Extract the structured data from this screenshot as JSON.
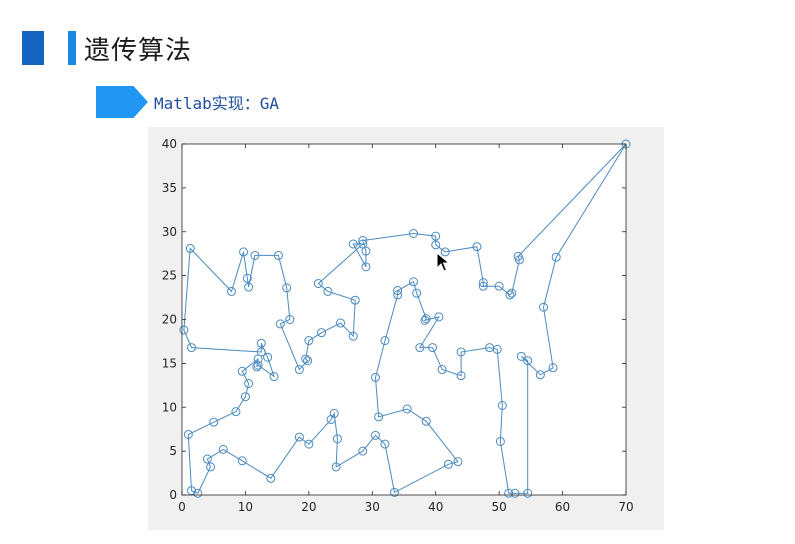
{
  "page": {
    "title": "遗传算法",
    "subtitle": "Matlab实现：GA"
  },
  "colors": {
    "accent_dark": "#1565c0",
    "accent_light": "#1e88e5",
    "arrow": "#2196f3",
    "subtitle": "#1f4fa0",
    "route": "#4a8ac0",
    "figure_bg": "#f0f0f0"
  },
  "icons": {
    "cursor": "mouse-pointer-icon"
  },
  "chart_data": {
    "type": "line",
    "title": "",
    "xlabel": "",
    "ylabel": "",
    "xlim": [
      0,
      70
    ],
    "ylim": [
      0,
      40
    ],
    "xticks": [
      0,
      10,
      20,
      30,
      40,
      50,
      60,
      70
    ],
    "yticks": [
      0,
      5,
      10,
      15,
      20,
      25,
      30,
      35,
      40
    ],
    "xtick_labels": [
      "0",
      "10",
      "20",
      "30",
      "40",
      "50",
      "60",
      "70"
    ],
    "ytick_labels": [
      "0",
      "5",
      "10",
      "15",
      "20",
      "25",
      "30",
      "35",
      "40"
    ],
    "grid": false,
    "marker": "circle",
    "closed": true,
    "points": [
      [
        70,
        40
      ],
      [
        53,
        27.2
      ],
      [
        53.2,
        26.8
      ],
      [
        52,
        23
      ],
      [
        51.7,
        22.8
      ],
      [
        50,
        23.8
      ],
      [
        47.5,
        23.8
      ],
      [
        47.5,
        24.2
      ],
      [
        46.5,
        28.3
      ],
      [
        41.5,
        27.7
      ],
      [
        40,
        28.5
      ],
      [
        40,
        29.5
      ],
      [
        36.5,
        29.8
      ],
      [
        28.5,
        29
      ],
      [
        29,
        27.8
      ],
      [
        29,
        26
      ],
      [
        27,
        28.6
      ],
      [
        28.5,
        28.6
      ],
      [
        21.5,
        24.1
      ],
      [
        23,
        23.2
      ],
      [
        27.3,
        22.2
      ],
      [
        27,
        18.1
      ],
      [
        25,
        19.6
      ],
      [
        22,
        18.5
      ],
      [
        20,
        17.6
      ],
      [
        19.5,
        15.5
      ],
      [
        19.8,
        15.3
      ],
      [
        18.5,
        14.3
      ],
      [
        15.5,
        19.5
      ],
      [
        17,
        20
      ],
      [
        16.5,
        23.6
      ],
      [
        15.2,
        27.3
      ],
      [
        11.5,
        27.3
      ],
      [
        10.5,
        23.7
      ],
      [
        10.3,
        24.7
      ],
      [
        9.7,
        27.7
      ],
      [
        7.8,
        23.2
      ],
      [
        1.3,
        28.1
      ],
      [
        0.3,
        18.8
      ],
      [
        1.5,
        16.8
      ],
      [
        12.5,
        16.3
      ],
      [
        12.5,
        17.3
      ],
      [
        13.5,
        15.7
      ],
      [
        14.5,
        13.5
      ],
      [
        12,
        14.8
      ],
      [
        11.8,
        14.6
      ],
      [
        12,
        15.5
      ],
      [
        9.5,
        14.1
      ],
      [
        10.5,
        12.7
      ],
      [
        10,
        11.2
      ],
      [
        8.5,
        9.5
      ],
      [
        5,
        8.3
      ],
      [
        1,
        6.9
      ],
      [
        1.5,
        0.5
      ],
      [
        2.5,
        0.2
      ],
      [
        4.5,
        3.2
      ],
      [
        4,
        4.1
      ],
      [
        6.5,
        5.2
      ],
      [
        9.5,
        3.9
      ],
      [
        14,
        1.9
      ],
      [
        18.5,
        6.6
      ],
      [
        20,
        5.8
      ],
      [
        23.5,
        8.6
      ],
      [
        24,
        9.3
      ],
      [
        24.5,
        6.4
      ],
      [
        24.3,
        3.2
      ],
      [
        28.5,
        5
      ],
      [
        30.5,
        6.8
      ],
      [
        32,
        5.8
      ],
      [
        33.5,
        0.3
      ],
      [
        42,
        3.5
      ],
      [
        43.5,
        3.8
      ],
      [
        38.5,
        8.4
      ],
      [
        35.5,
        9.8
      ],
      [
        31,
        8.9
      ],
      [
        30.5,
        13.4
      ],
      [
        32,
        17.6
      ],
      [
        34,
        22.8
      ],
      [
        34,
        23.3
      ],
      [
        36.5,
        24.3
      ],
      [
        37,
        23
      ],
      [
        38.5,
        20.1
      ],
      [
        38.3,
        19.9
      ],
      [
        40.5,
        20.3
      ],
      [
        37.5,
        16.8
      ],
      [
        39.5,
        16.8
      ],
      [
        41,
        14.3
      ],
      [
        44,
        13.6
      ],
      [
        44,
        16.3
      ],
      [
        48.5,
        16.8
      ],
      [
        49.7,
        16.6
      ],
      [
        50.5,
        10.2
      ],
      [
        50.2,
        6.1
      ],
      [
        51.5,
        0.2
      ],
      [
        52.5,
        0.2
      ],
      [
        54.5,
        0.2
      ],
      [
        54.5,
        15.3
      ],
      [
        53.5,
        15.8
      ],
      [
        56.5,
        13.7
      ],
      [
        58.5,
        14.5
      ],
      [
        57,
        21.4
      ],
      [
        59,
        27.1
      ]
    ]
  }
}
